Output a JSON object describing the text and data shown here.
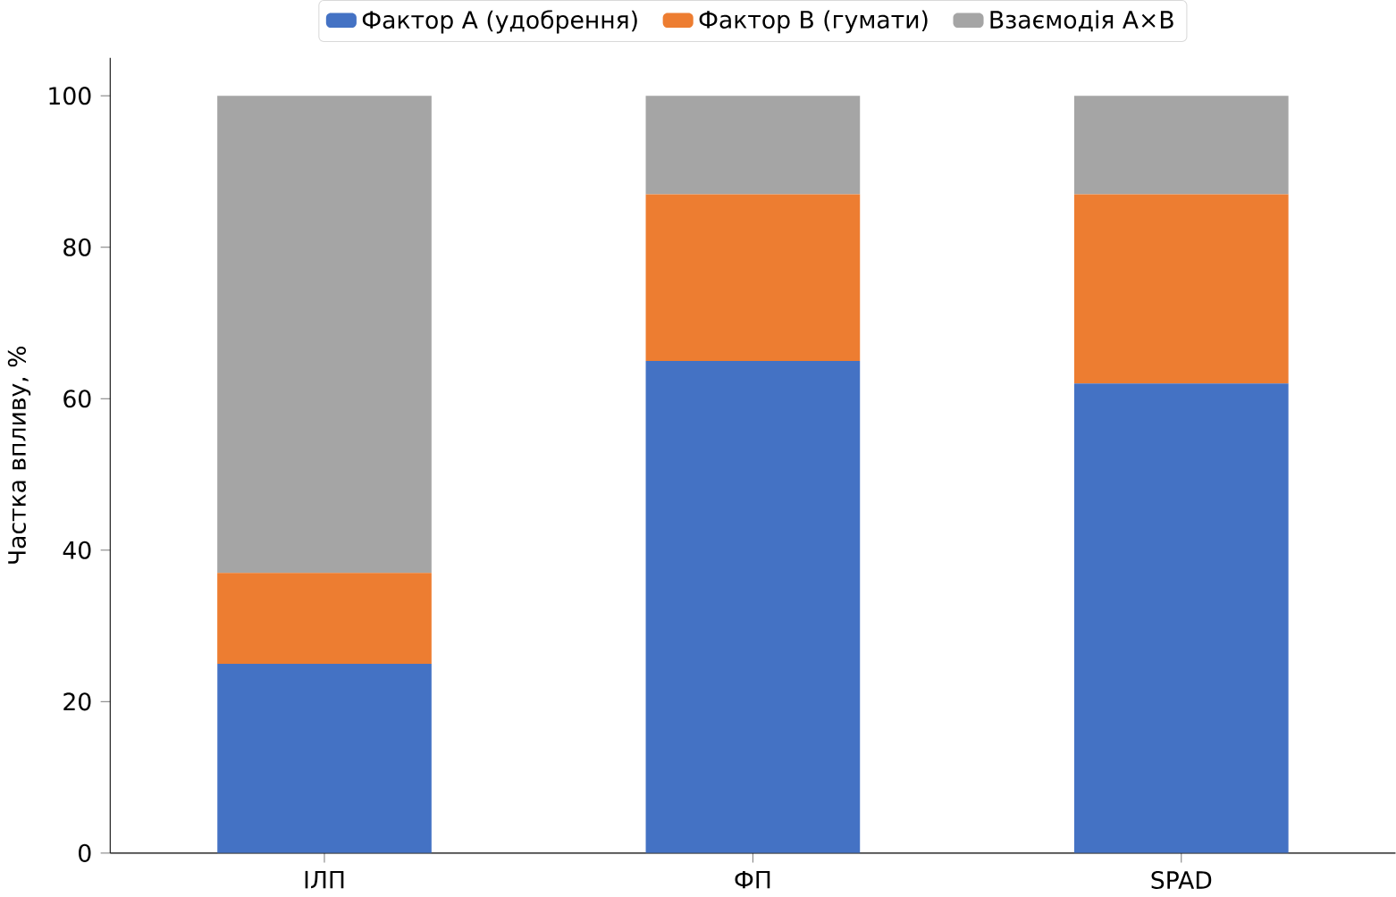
{
  "chart_data": {
    "type": "bar",
    "stacked": true,
    "ylabel": "Частка впливу, %",
    "categories": [
      "ІЛП",
      "ФП",
      "SPAD"
    ],
    "series": [
      {
        "name": "Фактор A (удобрення)",
        "color": "#4472c4",
        "values": [
          25,
          65,
          62
        ]
      },
      {
        "name": "Фактор B (гумати)",
        "color": "#ed7d31",
        "values": [
          12,
          22,
          25
        ]
      },
      {
        "name": "Взаємодія A×B",
        "color": "#a5a5a5",
        "values": [
          63,
          13,
          13
        ]
      }
    ],
    "ylim": [
      0,
      105
    ],
    "yticks": [
      0,
      20,
      40,
      60,
      80,
      100
    ],
    "grid": false,
    "legend": "top"
  }
}
